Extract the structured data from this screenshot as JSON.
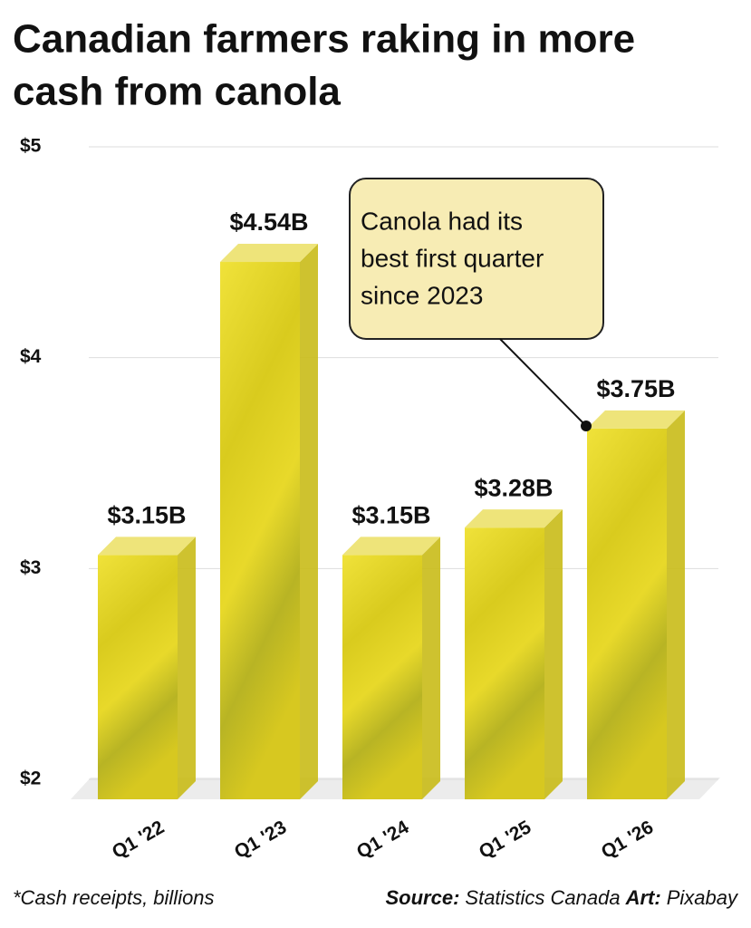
{
  "chart_data": {
    "type": "bar",
    "title": [
      "Canadian farmers raking in more",
      "cash from canola"
    ],
    "categories": [
      "Q1 '22",
      "Q1 '23",
      "Q1 '24",
      "Q1 '25",
      "Q1 '26"
    ],
    "values": [
      3.15,
      4.54,
      3.15,
      3.28,
      3.75
    ],
    "value_labels": [
      "$3.15B",
      "$4.54B",
      "$3.15B",
      "$3.28B",
      "$3.75B"
    ],
    "color": "#e3d21c",
    "ylim": [
      2,
      5
    ],
    "yticks": [
      {
        "value": 2,
        "label": "$2"
      },
      {
        "value": 3,
        "label": "$3"
      },
      {
        "value": 4,
        "label": "$4"
      },
      {
        "value": 5,
        "label": "$5"
      }
    ],
    "grid": true,
    "annotation": [
      "Canola had its",
      "best first quarter",
      "since 2023"
    ],
    "footnote": "*Cash receipts, billions",
    "source": {
      "label": "Source:",
      "text": "Statistics Canada"
    },
    "art": {
      "label": "Art:",
      "text": "Pixabay"
    }
  }
}
